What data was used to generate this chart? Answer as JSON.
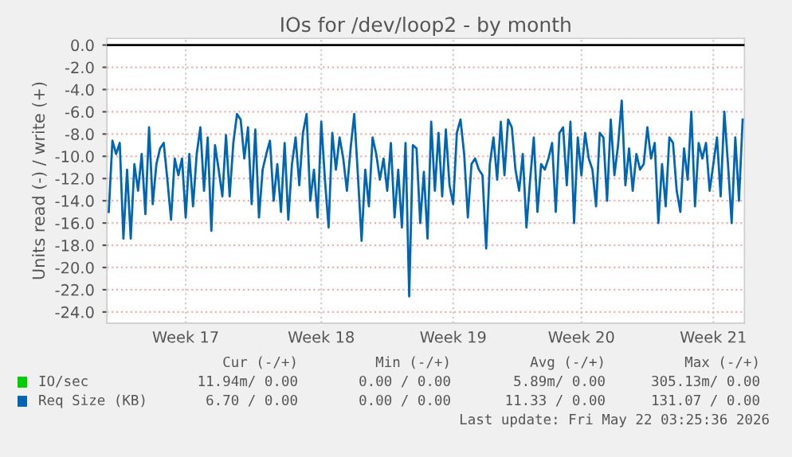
{
  "chart_data": {
    "type": "line",
    "title": "IOs for /dev/loop2 - by month",
    "ylabel": "Units read (-) / write (+)",
    "ylim": [
      -25,
      0.6
    ],
    "categories": [
      null,
      null,
      null,
      null,
      null,
      null,
      null,
      null,
      null,
      null,
      null,
      null,
      null,
      null,
      null,
      null,
      null,
      null,
      null,
      null,
      null,
      "Week 17",
      null,
      null,
      null,
      null,
      null,
      null,
      null,
      null,
      null,
      null,
      null,
      null,
      null,
      null,
      null,
      null,
      null,
      null,
      null,
      null,
      null,
      null,
      null,
      null,
      null,
      null,
      null,
      null,
      null,
      null,
      null,
      null,
      null,
      null,
      null,
      null,
      "Week 18",
      null,
      null,
      null,
      null,
      null,
      null,
      null,
      null,
      null,
      null,
      null,
      null,
      null,
      null,
      null,
      null,
      null,
      null,
      null,
      null,
      null,
      null,
      null,
      null,
      null,
      null,
      null,
      null,
      null,
      null,
      null,
      null,
      null,
      null,
      null,
      "Week 19",
      null,
      null,
      null,
      null,
      null,
      null,
      null,
      null,
      null,
      null,
      null,
      null,
      null,
      null,
      null,
      null,
      null,
      null,
      null,
      null,
      null,
      null,
      null,
      null,
      null,
      null,
      null,
      null,
      null,
      null,
      null,
      null,
      null,
      null,
      "Week 20",
      null,
      null,
      null,
      null,
      null,
      null,
      null,
      null,
      null,
      null,
      null,
      null,
      null,
      null,
      null,
      null,
      null,
      null,
      null,
      null,
      null,
      null,
      null,
      null,
      null,
      null,
      null,
      null,
      null,
      null,
      null,
      null,
      null,
      null,
      null,
      "Week 21",
      null,
      null,
      null,
      null,
      null,
      null,
      null,
      null
    ],
    "yticks": [
      {
        "value": 0,
        "label": "0.0"
      },
      {
        "value": -2,
        "label": "-2.0"
      },
      {
        "value": -4,
        "label": "-4.0"
      },
      {
        "value": -6,
        "label": "-6.0"
      },
      {
        "value": -8,
        "label": "-8.0"
      },
      {
        "value": -10,
        "label": "-10.0"
      },
      {
        "value": -12,
        "label": "-12.0"
      },
      {
        "value": -14,
        "label": "-14.0"
      },
      {
        "value": -16,
        "label": "-16.0"
      },
      {
        "value": -18,
        "label": "-18.0"
      },
      {
        "value": -20,
        "label": "-20.0"
      },
      {
        "value": -22,
        "label": "-22.0"
      },
      {
        "value": -24,
        "label": "-24.0"
      }
    ],
    "grid": true,
    "legend": "bottom",
    "marker": "none",
    "line_style": "solid",
    "ref_lines": [
      {
        "axis": "y",
        "value": 0,
        "color": "#000000"
      }
    ],
    "series": [
      {
        "name": "IO/sec",
        "color": "#00cc00",
        "values": [
          null,
          null,
          null,
          null,
          null,
          null,
          null,
          null,
          null,
          null,
          null,
          null,
          null,
          null,
          null,
          null,
          null,
          null,
          null,
          null,
          null,
          null,
          null,
          null,
          null,
          null,
          null,
          null,
          null,
          null,
          null,
          null,
          null,
          null,
          null,
          null,
          null,
          null,
          null,
          null,
          null,
          null,
          null,
          null,
          null,
          null,
          null,
          null,
          null,
          null,
          null,
          null,
          null,
          null,
          null,
          null,
          null,
          null,
          null,
          null,
          null,
          null,
          null,
          null,
          null,
          null,
          null,
          null,
          null,
          null,
          null,
          null,
          null,
          null,
          null,
          null,
          null,
          null,
          null,
          null,
          null,
          null,
          null,
          null,
          null,
          null,
          null,
          null,
          null,
          null,
          null,
          null,
          null,
          null,
          null,
          null,
          null,
          null,
          null,
          null,
          null,
          null,
          null,
          null,
          null,
          null,
          null,
          null,
          null,
          null,
          null,
          null,
          null,
          null,
          null,
          null,
          null,
          null,
          null,
          null,
          null,
          null,
          null,
          null,
          null,
          null,
          null,
          null,
          null,
          null,
          null,
          null,
          null,
          null,
          null,
          null,
          null,
          null,
          null,
          null,
          null,
          null,
          null,
          null,
          null,
          null,
          null,
          null,
          null,
          null,
          null,
          null,
          null,
          null,
          null,
          null,
          null,
          null,
          null,
          null,
          null,
          null,
          null,
          null,
          null,
          null,
          null,
          null,
          null,
          null,
          null,
          null,
          null,
          null
        ]
      },
      {
        "name": "Req Size (KB)",
        "color": "#0066b3",
        "values": [
          -15,
          -8.6,
          -9.8,
          -8.8,
          -17.4,
          -11.2,
          -17.4,
          -10.7,
          -13.1,
          -9.8,
          -15.2,
          -7.4,
          -14.3,
          -10.7,
          -9.3,
          -8.8,
          -12.1,
          -15.7,
          -10.2,
          -11.7,
          -10.2,
          -15.5,
          -9.8,
          -14.5,
          -9.8,
          -7.4,
          -13.1,
          -8.3,
          -16.7,
          -9,
          -11.2,
          -13.6,
          -8.1,
          -13.6,
          -8.8,
          -6.2,
          -6.7,
          -10.2,
          -7.4,
          -14.3,
          -7.6,
          -15.5,
          -11.2,
          -9.8,
          -8.6,
          -14,
          -10.7,
          -15,
          -8.8,
          -15.7,
          -10.7,
          -8.3,
          -12.6,
          -7.9,
          -6.2,
          -14,
          -11.2,
          -15.5,
          -6.9,
          -12.1,
          -16.4,
          -7.9,
          -11.2,
          -8.3,
          -10.2,
          -13.1,
          -9.3,
          -6.2,
          -11.7,
          -17.6,
          -11.2,
          -14.5,
          -8.3,
          -9.8,
          -12.1,
          -10.2,
          -13.1,
          -8.8,
          -15.5,
          -11.2,
          -16.4,
          -8.8,
          -22.6,
          -9,
          -9.3,
          -16,
          -11.4,
          -17.4,
          -6.9,
          -13.1,
          -7.9,
          -13.6,
          -7.6,
          -12.6,
          -14.3,
          -7.9,
          -6.7,
          -9.8,
          -15.5,
          -10.7,
          -10.2,
          -11.2,
          -11.7,
          -18.3,
          -10.7,
          -8.3,
          -12.1,
          -6.9,
          -11.7,
          -6.7,
          -7.4,
          -11.2,
          -13.1,
          -9.8,
          -16.4,
          -12.1,
          -8.3,
          -15,
          -10.7,
          -11.2,
          -10.2,
          -8.8,
          -15,
          -7.9,
          -7.4,
          -12.6,
          -6.9,
          -16,
          -8.3,
          -11.7,
          -7.9,
          -10.2,
          -11.2,
          -14.5,
          -7.9,
          -8.3,
          -14,
          -6.7,
          -11.7,
          -9,
          -5,
          -12.6,
          -9.3,
          -13.1,
          -9.8,
          -11.2,
          -10.7,
          -7.4,
          -10.2,
          -8.8,
          -16,
          -10.7,
          -14.5,
          -8.3,
          -8.8,
          -13.1,
          -15,
          -9.3,
          -12.1,
          -6,
          -14.5,
          -8.8,
          -10.2,
          -8.8,
          -13.1,
          -10.7,
          -8.3,
          -13.6,
          -6,
          -10.7,
          -16,
          -8.3,
          -14,
          -6.7
        ]
      }
    ],
    "annotations": [
      "Cur (-/+)",
      "Min (-/+)",
      "Avg (-/+)",
      "Max (-/+)",
      "11.94m/ 0.00",
      "0.00 / 0.00",
      "5.89m/ 0.00",
      "305.13m/ 0.00",
      "6.70 / 0.00",
      "0.00 / 0.00",
      "11.33 / 0.00",
      "131.07 / 0.00",
      "Last update: Fri May 22 03:25:36 2026"
    ]
  }
}
